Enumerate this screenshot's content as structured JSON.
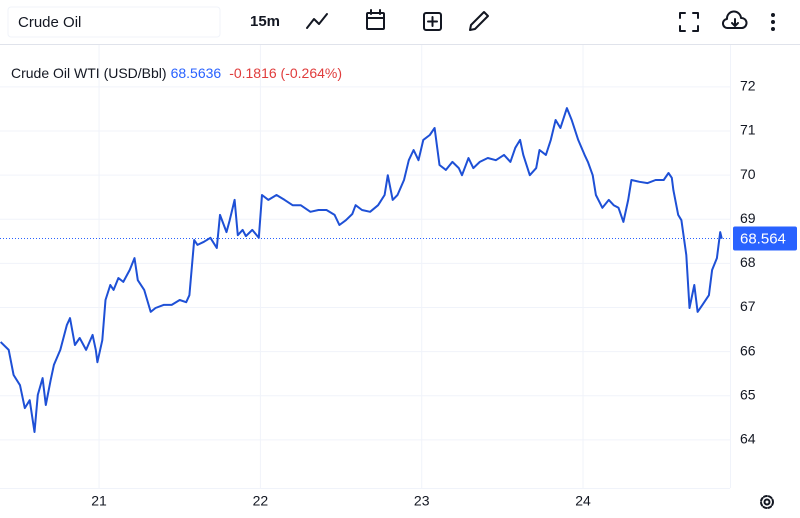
{
  "toolbar": {
    "symbol": "Crude Oil",
    "interval": "15m"
  },
  "chart_data": {
    "type": "line",
    "title": "Crude Oil WTI (USD/Bbl)",
    "last_value": 68.5636,
    "change_label": "-0.1816 (-0.264%)",
    "price_label": "68.564",
    "xlim": [
      20.386,
      24.911
    ],
    "xticks": [
      21,
      22,
      23,
      24
    ],
    "ylim": [
      62.91,
      72.95
    ],
    "yticks": [
      64,
      65,
      66,
      67,
      68,
      69,
      70,
      71,
      72
    ],
    "grid": true,
    "series": [
      {
        "name": "Crude Oil WTI (USD/Bbl)",
        "color": "#1e50d6",
        "x": [
          20.39,
          20.44,
          20.47,
          20.51,
          20.54,
          20.57,
          20.6,
          20.62,
          20.65,
          20.67,
          20.7,
          20.72,
          20.76,
          20.8,
          20.82,
          20.85,
          20.88,
          20.92,
          20.96,
          20.98,
          20.99,
          21.02,
          21.04,
          21.07,
          21.09,
          21.12,
          21.15,
          21.19,
          21.22,
          21.24,
          21.28,
          21.32,
          21.35,
          21.4,
          21.45,
          21.5,
          21.54,
          21.56,
          21.59,
          21.61,
          21.65,
          21.69,
          21.73,
          21.75,
          21.79,
          21.81,
          21.84,
          21.86,
          21.89,
          21.91,
          21.95,
          21.99,
          22.01,
          22.05,
          22.1,
          22.15,
          22.2,
          22.25,
          22.31,
          22.36,
          22.41,
          22.46,
          22.49,
          22.53,
          22.57,
          22.59,
          22.63,
          22.68,
          22.73,
          22.77,
          22.79,
          22.82,
          22.85,
          22.89,
          22.92,
          22.95,
          22.98,
          23.01,
          23.05,
          23.08,
          23.11,
          23.15,
          23.19,
          23.23,
          23.25,
          23.29,
          23.32,
          23.36,
          23.41,
          23.46,
          23.51,
          23.55,
          23.58,
          23.61,
          23.63,
          23.67,
          23.71,
          23.73,
          23.77,
          23.8,
          23.83,
          23.86,
          23.9,
          23.93,
          23.97,
          24.01,
          24.03,
          24.06,
          24.08,
          24.12,
          24.16,
          24.19,
          24.22,
          24.25,
          24.28,
          24.3,
          24.35,
          24.4,
          24.45,
          24.5,
          24.53,
          24.55,
          24.56,
          24.59,
          24.61,
          24.64,
          24.66,
          24.69,
          24.71,
          24.74,
          24.78,
          24.8,
          24.83,
          24.85,
          24.86
        ],
        "values": [
          66.22,
          66.04,
          65.47,
          65.24,
          64.72,
          64.9,
          64.18,
          65.02,
          65.4,
          64.79,
          65.36,
          65.7,
          66.04,
          66.6,
          66.76,
          66.15,
          66.31,
          66.04,
          66.38,
          66.04,
          65.76,
          66.26,
          67.17,
          67.51,
          67.4,
          67.67,
          67.58,
          67.85,
          68.12,
          67.62,
          67.4,
          66.9,
          66.99,
          67.06,
          67.06,
          67.17,
          67.12,
          67.28,
          68.53,
          68.42,
          68.49,
          68.58,
          68.35,
          69.1,
          68.71,
          68.98,
          69.44,
          68.64,
          68.76,
          68.62,
          68.76,
          68.58,
          69.55,
          69.44,
          69.55,
          69.44,
          69.32,
          69.32,
          69.17,
          69.21,
          69.21,
          69.1,
          68.87,
          68.98,
          69.12,
          69.32,
          69.21,
          69.17,
          69.32,
          69.55,
          70.0,
          69.44,
          69.55,
          69.89,
          70.34,
          70.57,
          70.34,
          70.8,
          70.91,
          71.07,
          70.23,
          70.12,
          70.3,
          70.16,
          70.0,
          70.39,
          70.16,
          70.3,
          70.39,
          70.34,
          70.46,
          70.3,
          70.62,
          70.8,
          70.46,
          70.0,
          70.16,
          70.57,
          70.46,
          70.8,
          71.25,
          71.07,
          71.52,
          71.25,
          70.8,
          70.46,
          70.3,
          70.0,
          69.55,
          69.26,
          69.44,
          69.32,
          69.26,
          68.94,
          69.44,
          69.89,
          69.85,
          69.82,
          69.89,
          69.89,
          70.05,
          69.94,
          69.66,
          69.1,
          68.98,
          68.19,
          66.99,
          67.51,
          66.9,
          67.06,
          67.28,
          67.85,
          68.12,
          68.71,
          68.56
        ]
      }
    ]
  }
}
